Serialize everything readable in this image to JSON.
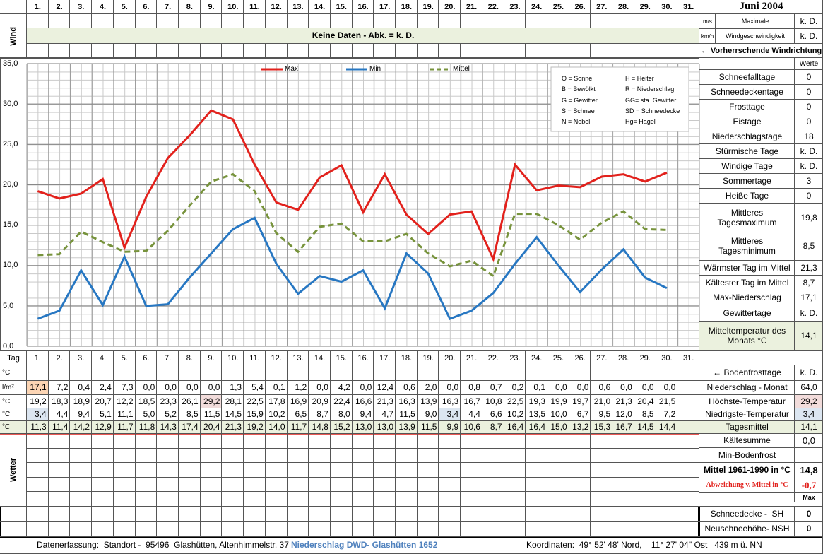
{
  "header": {
    "title": "Juni 2004",
    "wind_label": "Wind",
    "no_data": "Keine Daten - Abk. = k. D.",
    "wind_rows": [
      {
        "unit": "m/s",
        "label": "Maximale",
        "value": "k. D."
      },
      {
        "unit": "km/h",
        "label": "Windgeschwindigkeit",
        "value": "k. D."
      }
    ],
    "wind_direction": "← Vorherrschende Windrichtung"
  },
  "chart_data": {
    "type": "line",
    "categories": [
      "1.",
      "2.",
      "3.",
      "4.",
      "5.",
      "6.",
      "7.",
      "8.",
      "9.",
      "10.",
      "11.",
      "12.",
      "13.",
      "14.",
      "15.",
      "16.",
      "17.",
      "18.",
      "19.",
      "20.",
      "21.",
      "22.",
      "23.",
      "24.",
      "25.",
      "26.",
      "27.",
      "28.",
      "29.",
      "30.",
      "31."
    ],
    "series": [
      {
        "name": "Max",
        "color": "#e2211c",
        "values": [
          19.2,
          18.3,
          18.9,
          20.7,
          12.2,
          18.5,
          23.3,
          26.1,
          29.2,
          28.1,
          22.5,
          17.8,
          16.9,
          20.9,
          22.4,
          16.6,
          21.3,
          16.3,
          13.9,
          16.3,
          16.7,
          10.8,
          22.5,
          19.3,
          19.9,
          19.7,
          21.0,
          21.3,
          20.4,
          21.5,
          null
        ]
      },
      {
        "name": "Min",
        "color": "#2777c2",
        "values": [
          3.4,
          4.4,
          9.4,
          5.1,
          11.1,
          5.0,
          5.2,
          8.5,
          11.5,
          14.5,
          15.9,
          10.2,
          6.5,
          8.7,
          8.0,
          9.4,
          4.7,
          11.5,
          9.0,
          3.4,
          4.4,
          6.6,
          10.2,
          13.5,
          10.0,
          6.7,
          9.5,
          12.0,
          8.5,
          7.2,
          null
        ]
      },
      {
        "name": "Mittel",
        "color": "#77933c",
        "dashed": true,
        "values": [
          11.3,
          11.4,
          14.2,
          12.9,
          11.7,
          11.8,
          14.3,
          17.4,
          20.4,
          21.3,
          19.2,
          14.0,
          11.7,
          14.8,
          15.2,
          13.0,
          13.0,
          13.9,
          11.5,
          9.9,
          10.6,
          8.7,
          16.4,
          16.4,
          15.0,
          13.2,
          15.3,
          16.7,
          14.5,
          14.4,
          null
        ]
      }
    ],
    "ylim": [
      0,
      35
    ],
    "yticks": [
      {
        "value": 0,
        "label": "0,0"
      },
      {
        "value": 5,
        "label": "5,0"
      },
      {
        "value": 10,
        "label": "10,0"
      },
      {
        "value": 15,
        "label": "15,0"
      },
      {
        "value": 20,
        "label": "20,0"
      },
      {
        "value": 25,
        "label": "25,0"
      },
      {
        "value": 30,
        "label": "30,0"
      },
      {
        "value": 35,
        "label": "35,0"
      }
    ],
    "grid": true,
    "annotations": [
      "O = Sonne",
      "H = Heiter",
      "B = Bewölkt",
      "R = Niederschlag",
      "G = Gewitter",
      "GG= sta. Gewitter",
      "S = Schnee",
      "SD = Schneedecke",
      "N = Nebel",
      "Hg= Hagel"
    ]
  },
  "stats": {
    "header": "Werte",
    "rows": [
      {
        "label": "Schneefalltage",
        "value": "0"
      },
      {
        "label": "Schneedeckentage",
        "value": "0"
      },
      {
        "label": "Frosttage",
        "value": "0"
      },
      {
        "label": "Eistage",
        "value": "0"
      },
      {
        "label": "Niederschlagstage",
        "value": "18"
      },
      {
        "label": "Stürmische Tage",
        "value": "k. D."
      },
      {
        "label": "Windige Tage",
        "value": "k. D."
      },
      {
        "label": "Sommertage",
        "value": "3"
      },
      {
        "label": "Heiße Tage",
        "value": "0"
      },
      {
        "label": "Mittleres Tagesmaximum",
        "value": "19,8"
      },
      {
        "label": "Mittleres Tagesminimum",
        "value": "8,5"
      },
      {
        "label": "Wärmster Tag im Mittel",
        "value": "21,3"
      },
      {
        "label": "Kältester Tag im Mittel",
        "value": "8,7"
      },
      {
        "label": "Max-Niederschlag",
        "value": "17,1"
      },
      {
        "label": "Gewittertage",
        "value": "k. D."
      },
      {
        "label": "Mitteltemperatur des Monats °C",
        "value": "14,1"
      }
    ]
  },
  "table": {
    "day_label": "Tag",
    "wetter_label": "Wetter",
    "rows": [
      {
        "unit": "°C"
      },
      {
        "unit": "l/m²",
        "cells": [
          "17,1",
          "7,2",
          "0,4",
          "2,4",
          "7,3",
          "0,0",
          "0,0",
          "0,0",
          "0,0",
          "1,3",
          "5,4",
          "0,1",
          "1,2",
          "0,0",
          "4,2",
          "0,0",
          "12,4",
          "0,6",
          "2,0",
          "0,0",
          "0,8",
          "0,7",
          "0,2",
          "0,1",
          "0,0",
          "0,0",
          "0,6",
          "0,0",
          "0,0",
          "0,0"
        ]
      },
      {
        "unit": "°C",
        "cells": [
          "19,2",
          "18,3",
          "18,9",
          "20,7",
          "12,2",
          "18,5",
          "23,3",
          "26,1",
          "29,2",
          "28,1",
          "22,5",
          "17,8",
          "16,9",
          "20,9",
          "22,4",
          "16,6",
          "21,3",
          "16,3",
          "13,9",
          "16,3",
          "16,7",
          "10,8",
          "22,5",
          "19,3",
          "19,9",
          "19,7",
          "21,0",
          "21,3",
          "20,4",
          "21,5"
        ]
      },
      {
        "unit": "°C",
        "cells": [
          "3,4",
          "4,4",
          "9,4",
          "5,1",
          "11,1",
          "5,0",
          "5,2",
          "8,5",
          "11,5",
          "14,5",
          "15,9",
          "10,2",
          "6,5",
          "8,7",
          "8,0",
          "9,4",
          "4,7",
          "11,5",
          "9,0",
          "3,4",
          "4,4",
          "6,6",
          "10,2",
          "13,5",
          "10,0",
          "6,7",
          "9,5",
          "12,0",
          "8,5",
          "7,2"
        ]
      },
      {
        "unit": "°C",
        "cells": [
          "11,3",
          "11,4",
          "14,2",
          "12,9",
          "11,7",
          "11,8",
          "14,3",
          "17,4",
          "20,4",
          "21,3",
          "19,2",
          "14,0",
          "11,7",
          "14,8",
          "15,2",
          "13,0",
          "13,0",
          "13,9",
          "11,5",
          "9,9",
          "10,6",
          "8,7",
          "16,4",
          "16,4",
          "15,0",
          "13,2",
          "15,3",
          "16,7",
          "14,5",
          "14,4"
        ]
      }
    ],
    "summary": [
      {
        "label": "← Bodenfrosttage",
        "value": "k. D."
      },
      {
        "label": "Niederschlag - Monat",
        "value": "64,0"
      },
      {
        "label": "Höchste-Temperatur",
        "value": "29,2"
      },
      {
        "label": "Niedrigste-Temperatur",
        "value": "3,4"
      },
      {
        "label": "Tagesmittel",
        "value": "14,1"
      }
    ],
    "lower_summary": [
      {
        "label": "Kältesumme",
        "value": "0,0"
      },
      {
        "label": "Min-Bodenfrost"
      },
      {
        "label": "Mittel 1961-1990 in °C",
        "value": "14,8"
      },
      {
        "label": "Abweichung v. Mittel in °C",
        "value": "-0,7"
      },
      {
        "value": "Max"
      }
    ],
    "snow": [
      {
        "label": "Schneedecke -  SH",
        "value": "0"
      },
      {
        "label": "Neuschneehöhe- NSH",
        "value": "0"
      }
    ]
  },
  "footer": {
    "location": "Datenerfassung:  Standort -  95496  Glashütten, Altenhimmelstr. 37 -",
    "source": "Niederschlag DWD- Glashütten 1652",
    "coordinates": "Koordinaten:  49° 52' 48' Nord,    11° 27' 04'' Ost   439 m ü. NN"
  }
}
